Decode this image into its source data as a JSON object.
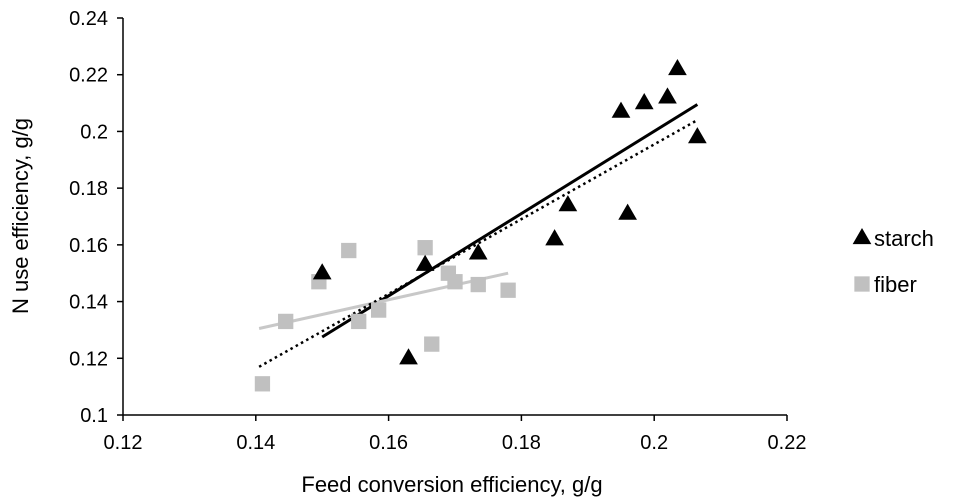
{
  "chart_data": {
    "type": "scatter",
    "xlabel": "Feed conversion efficiency, g/g",
    "ylabel": "N use efficiency, g/g",
    "xlim": [
      0.12,
      0.22
    ],
    "ylim": [
      0.1,
      0.24
    ],
    "x_ticks": [
      "0.12",
      "0.14",
      "0.16",
      "0.18",
      "0.2",
      "0.22"
    ],
    "y_ticks": [
      "0.1",
      "0.12",
      "0.14",
      "0.16",
      "0.18",
      "0.2",
      "0.22",
      "0.24"
    ],
    "grid": false,
    "legend_position": "right",
    "series": [
      {
        "name": "starch",
        "marker": "triangle",
        "color": "#000000",
        "points": [
          [
            0.15,
            0.15
          ],
          [
            0.163,
            0.12
          ],
          [
            0.1655,
            0.153
          ],
          [
            0.1735,
            0.157
          ],
          [
            0.185,
            0.162
          ],
          [
            0.187,
            0.174
          ],
          [
            0.195,
            0.207
          ],
          [
            0.196,
            0.171
          ],
          [
            0.1985,
            0.21
          ],
          [
            0.202,
            0.212
          ],
          [
            0.2035,
            0.222
          ],
          [
            0.2065,
            0.198
          ]
        ]
      },
      {
        "name": "fiber",
        "marker": "square",
        "color": "#c0c0c0",
        "points": [
          [
            0.141,
            0.111
          ],
          [
            0.1445,
            0.133
          ],
          [
            0.1495,
            0.147
          ],
          [
            0.154,
            0.158
          ],
          [
            0.1555,
            0.133
          ],
          [
            0.1585,
            0.137
          ],
          [
            0.1655,
            0.159
          ],
          [
            0.169,
            0.15
          ],
          [
            0.17,
            0.147
          ],
          [
            0.1665,
            0.125
          ],
          [
            0.1735,
            0.146
          ],
          [
            0.178,
            0.144
          ]
        ]
      }
    ],
    "trendlines": [
      {
        "series": "starch",
        "style": "solid",
        "color": "#000000",
        "from": [
          0.15,
          0.1275
        ],
        "to": [
          0.2065,
          0.2095
        ]
      },
      {
        "series": "fiber",
        "style": "solid",
        "color": "#c8c8c8",
        "from": [
          0.1405,
          0.1305
        ],
        "to": [
          0.178,
          0.15
        ]
      },
      {
        "series": "all",
        "style": "dotted",
        "color": "#000000",
        "from": [
          0.1405,
          0.117
        ],
        "to": [
          0.2065,
          0.204
        ]
      }
    ]
  }
}
